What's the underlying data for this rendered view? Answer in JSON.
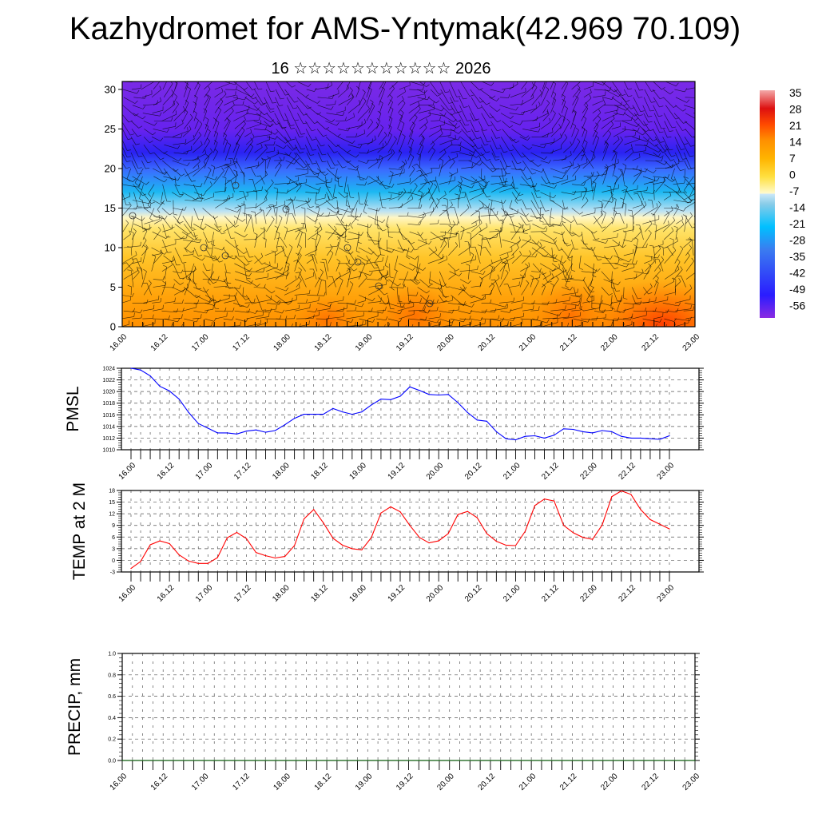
{
  "title": "Kazhydromet for AMS-Yntymak(42.969 70.109)",
  "subtitle": "16 ☆☆☆☆☆☆☆☆☆☆☆ 2026",
  "time_labels": [
    "16.00",
    "16.12",
    "17.00",
    "17.12",
    "18.00",
    "18.12",
    "19.00",
    "19.12",
    "20.00",
    "20.12",
    "21.00",
    "21.12",
    "22.00",
    "22.12",
    "23.00"
  ],
  "colors": {
    "pmsl_line": "#0000ff",
    "temp_line": "#ff0000",
    "precip_line": "#006400"
  },
  "chart_data": [
    {
      "type": "heatmap",
      "name": "vertical-section",
      "ylabel": "",
      "yticks": [
        0,
        5,
        10,
        15,
        20,
        25,
        30
      ],
      "ylim": [
        0,
        31
      ],
      "x_hours_range": [
        0,
        168
      ],
      "colorbar": {
        "labels": [
          "35",
          "28",
          "21",
          "14",
          "7",
          "0",
          "-7",
          "-14",
          "-21",
          "-28",
          "-35",
          "-42",
          "-49",
          "-56"
        ],
        "values": [
          35,
          28,
          21,
          14,
          7,
          0,
          -7,
          -14,
          -21,
          -28,
          -35,
          -42,
          -49,
          -56
        ]
      },
      "overlay": "wind barbs"
    },
    {
      "type": "line",
      "name": "pmsl",
      "ylabel": "PMSL",
      "ylim": [
        1010,
        1024
      ],
      "yticks": [
        "1010",
        "1012",
        "1014",
        "1016",
        "1018",
        "1020",
        "1022",
        "1024"
      ],
      "x_step_hours": 3,
      "values": [
        1024.0,
        1023.7,
        1022.7,
        1020.9,
        1020.1,
        1018.7,
        1016.4,
        1014.5,
        1013.7,
        1012.9,
        1012.9,
        1012.7,
        1013.2,
        1013.4,
        1013.0,
        1013.3,
        1014.3,
        1015.4,
        1016.1,
        1016.1,
        1016.1,
        1017.1,
        1016.5,
        1016.1,
        1016.5,
        1017.7,
        1018.7,
        1018.6,
        1019.2,
        1020.8,
        1020.2,
        1019.5,
        1019.4,
        1019.5,
        1018.1,
        1016.4,
        1015.1,
        1014.9,
        1013.1,
        1011.9,
        1011.7,
        1012.3,
        1012.4,
        1012.0,
        1012.5,
        1013.6,
        1013.5,
        1013.1,
        1012.9,
        1013.3,
        1013.1,
        1012.3,
        1012.0,
        1012.0,
        1011.9,
        1011.8,
        1012.4
      ]
    },
    {
      "type": "line",
      "name": "temp",
      "ylabel": "TEMP at 2 M",
      "ylim": [
        -3,
        18
      ],
      "yticks": [
        "-3",
        "0",
        "3",
        "6",
        "9",
        "12",
        "15",
        "18"
      ],
      "x_step_hours": 3,
      "values": [
        -2.1,
        -0.3,
        4.0,
        5.0,
        4.3,
        1.4,
        -0.2,
        -0.8,
        -0.8,
        0.7,
        5.8,
        7.2,
        5.6,
        2.0,
        1.2,
        0.6,
        1.0,
        3.8,
        10.7,
        13.1,
        9.7,
        5.7,
        3.9,
        3.0,
        2.7,
        5.9,
        12.2,
        13.8,
        12.5,
        9.0,
        5.9,
        4.5,
        5.0,
        6.9,
        11.8,
        12.6,
        11.0,
        6.9,
        4.9,
        3.9,
        3.8,
        7.5,
        14.1,
        15.8,
        15.3,
        9.0,
        7.1,
        5.9,
        5.4,
        9.1,
        16.4,
        17.9,
        17.0,
        13.1,
        10.5,
        9.3,
        8.1
      ]
    },
    {
      "type": "line",
      "name": "precip",
      "ylabel": "PRECIP, mm",
      "ylim": [
        0,
        1
      ],
      "yticks": [
        "0.0",
        "0.2",
        "0.4",
        "0.6",
        "0.8",
        "1.0"
      ],
      "x_step_hours": 3,
      "values": [
        0,
        0,
        0,
        0,
        0,
        0,
        0,
        0,
        0,
        0,
        0,
        0,
        0,
        0,
        0,
        0,
        0,
        0,
        0,
        0,
        0,
        0,
        0,
        0,
        0,
        0,
        0,
        0,
        0,
        0,
        0,
        0,
        0,
        0,
        0,
        0,
        0,
        0,
        0,
        0,
        0,
        0,
        0,
        0,
        0,
        0,
        0,
        0,
        0,
        0,
        0,
        0,
        0,
        0,
        0,
        0,
        0
      ]
    }
  ]
}
